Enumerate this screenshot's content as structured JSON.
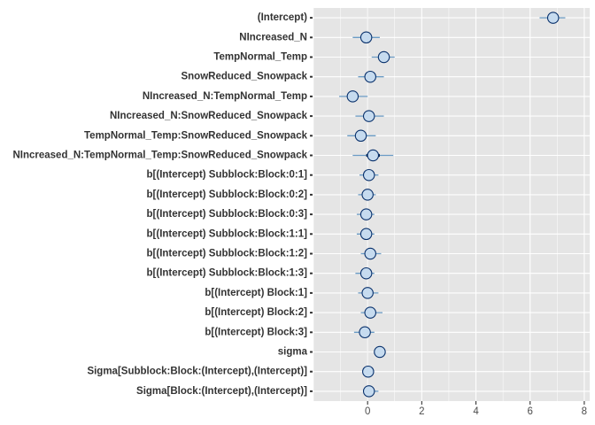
{
  "chart_data": {
    "type": "scatter",
    "title": "",
    "xlabel": "",
    "ylabel": "",
    "xlim": [
      -2.0,
      8.2
    ],
    "x_ticks": [
      0,
      2,
      4,
      6,
      8
    ],
    "grid": true,
    "colors": {
      "panel_bg": "#e5e5e5",
      "grid": "#ffffff",
      "point_fill": "#c6dbef",
      "point_stroke": "#08306b",
      "interval_inner": "#011f4b",
      "interval_outer": "#6b9cc6",
      "zero_line": "#f2f2f2"
    },
    "parameters": [
      {
        "label": "(Intercept)",
        "estimate": 6.85,
        "inner": [
          6.7,
          7.0
        ],
        "outer": [
          6.35,
          7.3
        ]
      },
      {
        "label": "NIncreased_N",
        "estimate": -0.05,
        "inner": [
          -0.2,
          0.1
        ],
        "outer": [
          -0.55,
          0.45
        ]
      },
      {
        "label": "TempNormal_Temp",
        "estimate": 0.6,
        "inner": [
          0.45,
          0.75
        ],
        "outer": [
          0.15,
          1.0
        ]
      },
      {
        "label": "SnowReduced_Snowpack",
        "estimate": 0.1,
        "inner": [
          -0.05,
          0.25
        ],
        "outer": [
          -0.35,
          0.6
        ]
      },
      {
        "label": "NIncreased_N:TempNormal_Temp",
        "estimate": -0.55,
        "inner": [
          -0.75,
          -0.35
        ],
        "outer": [
          -1.05,
          0.0
        ]
      },
      {
        "label": "NIncreased_N:SnowReduced_Snowpack",
        "estimate": 0.05,
        "inner": [
          -0.15,
          0.25
        ],
        "outer": [
          -0.45,
          0.6
        ]
      },
      {
        "label": "TempNormal_Temp:SnowReduced_Snowpack",
        "estimate": -0.25,
        "inner": [
          -0.45,
          -0.05
        ],
        "outer": [
          -0.75,
          0.3
        ]
      },
      {
        "label": "NIncreased_N:TempNormal_Temp:SnowReduced_Snowpack",
        "estimate": 0.2,
        "inner": [
          -0.05,
          0.45
        ],
        "outer": [
          -0.55,
          0.95
        ]
      },
      {
        "label": "b[(Intercept) Subblock:Block:0:1]",
        "estimate": 0.05,
        "inner": [
          -0.05,
          0.15
        ],
        "outer": [
          -0.3,
          0.4
        ]
      },
      {
        "label": "b[(Intercept) Subblock:Block:0:2]",
        "estimate": 0.0,
        "inner": [
          -0.1,
          0.1
        ],
        "outer": [
          -0.35,
          0.3
        ]
      },
      {
        "label": "b[(Intercept) Subblock:Block:0:3]",
        "estimate": -0.05,
        "inner": [
          -0.15,
          0.05
        ],
        "outer": [
          -0.4,
          0.25
        ]
      },
      {
        "label": "b[(Intercept) Subblock:Block:1:1]",
        "estimate": -0.05,
        "inner": [
          -0.15,
          0.05
        ],
        "outer": [
          -0.4,
          0.25
        ]
      },
      {
        "label": "b[(Intercept) Subblock:Block:1:2]",
        "estimate": 0.1,
        "inner": [
          0.0,
          0.2
        ],
        "outer": [
          -0.25,
          0.5
        ]
      },
      {
        "label": "b[(Intercept) Subblock:Block:1:3]",
        "estimate": -0.05,
        "inner": [
          -0.15,
          0.05
        ],
        "outer": [
          -0.45,
          0.25
        ]
      },
      {
        "label": "b[(Intercept) Block:1]",
        "estimate": 0.0,
        "inner": [
          -0.1,
          0.1
        ],
        "outer": [
          -0.35,
          0.4
        ]
      },
      {
        "label": "b[(Intercept) Block:2]",
        "estimate": 0.1,
        "inner": [
          0.0,
          0.2
        ],
        "outer": [
          -0.25,
          0.55
        ]
      },
      {
        "label": "b[(Intercept) Block:3]",
        "estimate": -0.1,
        "inner": [
          -0.2,
          0.0
        ],
        "outer": [
          -0.5,
          0.25
        ]
      },
      {
        "label": "sigma",
        "estimate": 0.45,
        "inner": [
          0.38,
          0.52
        ],
        "outer": [
          0.3,
          0.62
        ]
      },
      {
        "label": "Sigma[Subblock:Block:(Intercept),(Intercept)]",
        "estimate": 0.02,
        "inner": [
          0.0,
          0.05
        ],
        "outer": [
          0.0,
          0.15
        ]
      },
      {
        "label": "Sigma[Block:(Intercept),(Intercept)]",
        "estimate": 0.05,
        "inner": [
          0.0,
          0.12
        ],
        "outer": [
          0.0,
          0.4
        ]
      }
    ]
  }
}
